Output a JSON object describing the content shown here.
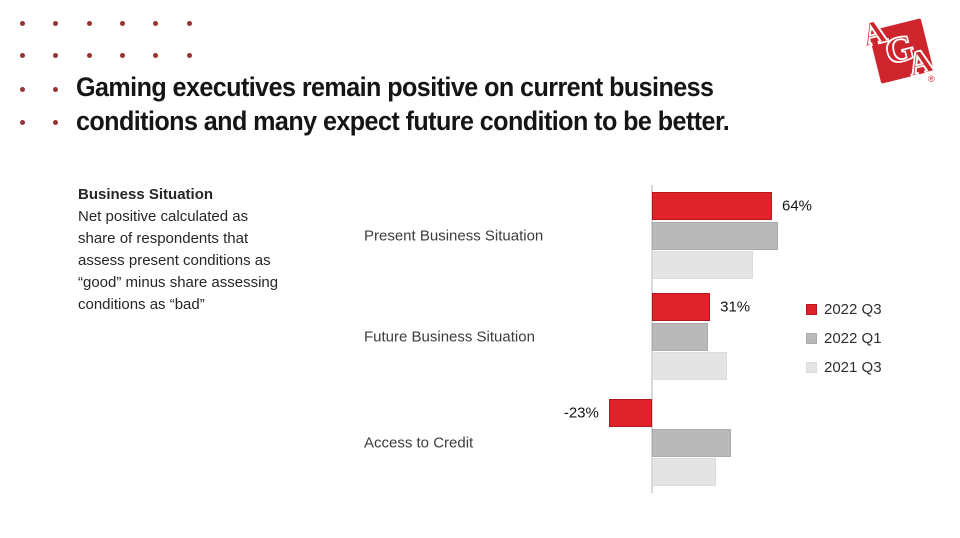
{
  "slide": {
    "title_lines": [
      "Gaming executives remain positive on current business",
      "conditions and many expect future condition to be better."
    ],
    "dots": {
      "color": "#993333",
      "rows": [
        6,
        6,
        2,
        2
      ]
    },
    "logo": {
      "letters": [
        "A",
        "G",
        "A"
      ],
      "registered": "®",
      "color": "#ce242c"
    }
  },
  "note": {
    "heading": "Business Situation",
    "lines": [
      "Net positive calculated as",
      "share of respondents that",
      "assess present conditions as",
      "“good” minus share assessing",
      "conditions as “bad”"
    ]
  },
  "chart_data": {
    "type": "bar",
    "orientation": "horizontal",
    "title": "",
    "categories": [
      "Present Business Situation",
      "Future Business Situation",
      "Access to Credit"
    ],
    "series": [
      {
        "name": "2022 Q3",
        "color": "#e0232a",
        "border": "#b6161d",
        "values": [
          64,
          31,
          -23
        ]
      },
      {
        "name": "2022 Q1",
        "color": "#b9b9b9",
        "border": "#ababab",
        "values": [
          67,
          30,
          42
        ]
      },
      {
        "name": "2021 Q3",
        "color": "#e4e4e4",
        "border": "#dcdcdc",
        "values": [
          54,
          40,
          34
        ]
      }
    ],
    "value_labels": [
      "64%",
      "31%",
      "-23%"
    ],
    "labeled_series": "2022 Q3",
    "xlim": [
      -30,
      80
    ],
    "grid": false,
    "legend_position": "right",
    "axis_color": "#d8d8d8"
  }
}
